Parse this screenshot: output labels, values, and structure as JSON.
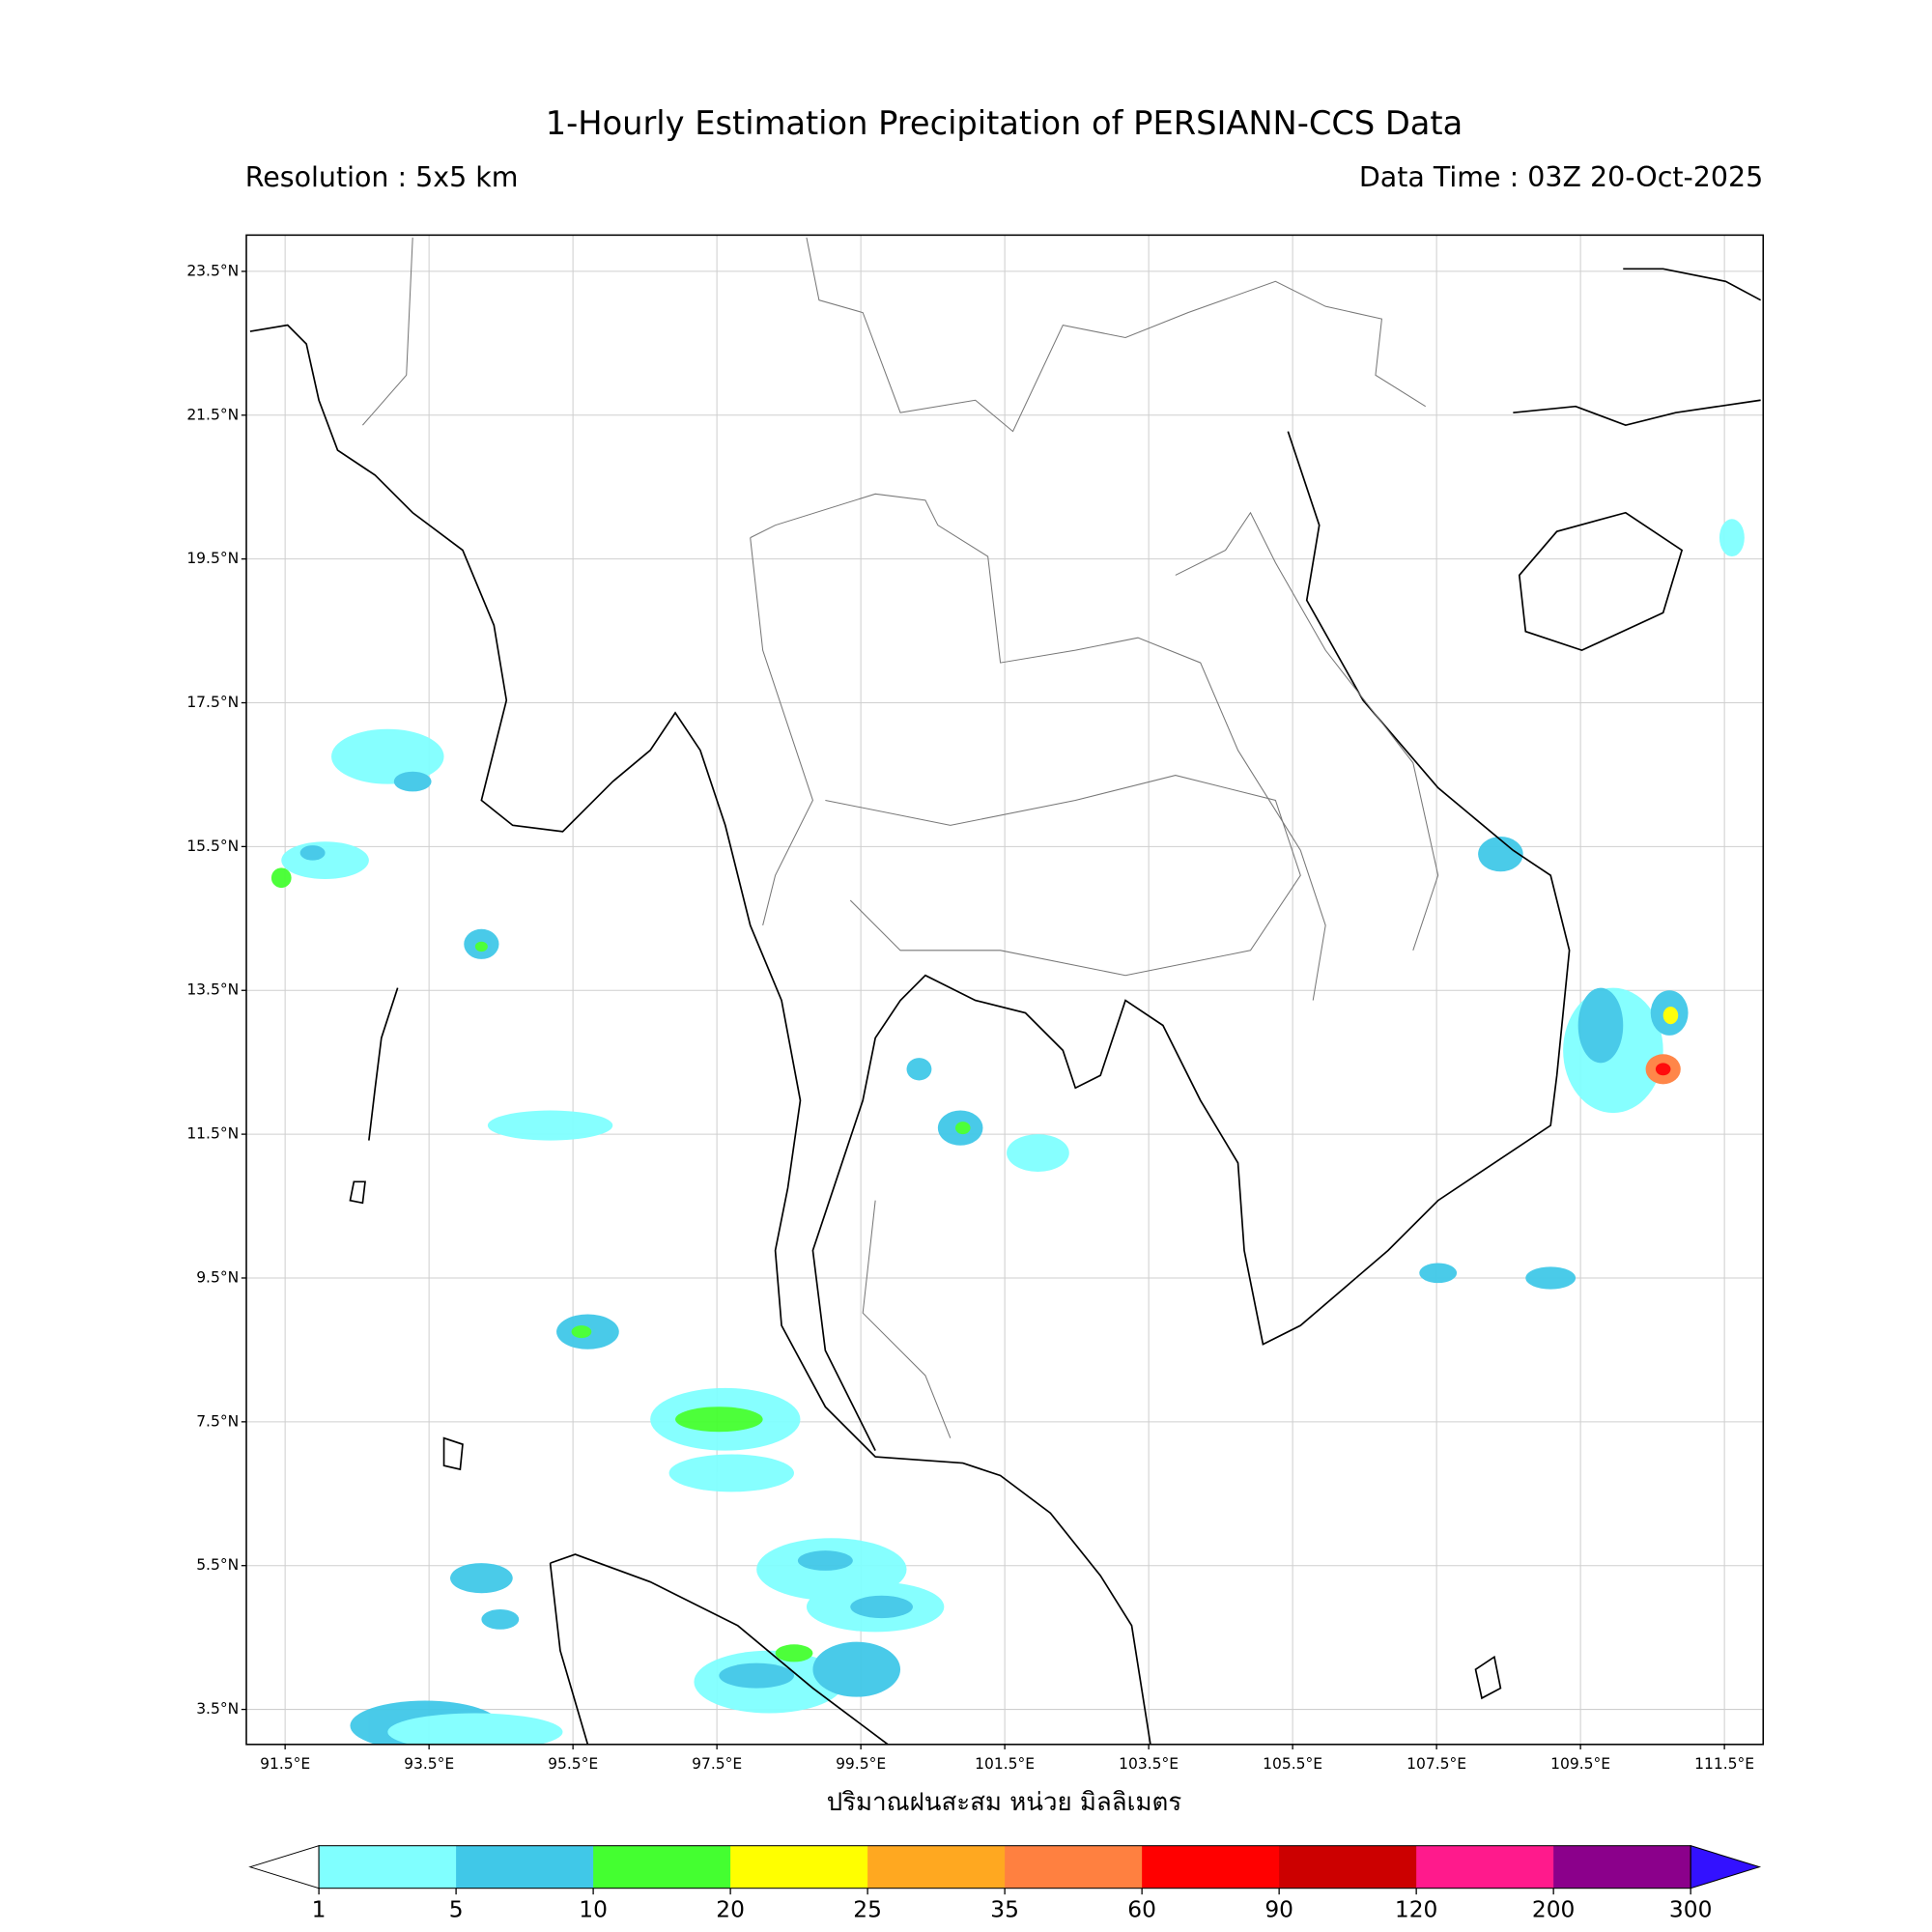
{
  "header": {
    "title": "1-Hourly Estimation Precipitation of PERSIANN-CCS Data",
    "resolution": "Resolution : 5x5 km",
    "data_time": "Data Time : 03Z 20-Oct-2025"
  },
  "map": {
    "lon_ticks": [
      "91.5°E",
      "93.5°E",
      "95.5°E",
      "97.5°E",
      "99.5°E",
      "101.5°E",
      "103.5°E",
      "105.5°E",
      "107.5°E",
      "109.5°E",
      "111.5°E"
    ],
    "lat_ticks": [
      "23.5°N",
      "21.5°N",
      "19.5°N",
      "17.5°N",
      "15.5°N",
      "13.5°N",
      "11.5°N",
      "9.5°N",
      "7.5°N",
      "5.5°N",
      "3.5°N"
    ],
    "xlabel": "ปริมาณฝนสะสม หน่วย มิลลิเมตร",
    "grid": true
  },
  "colorbar": {
    "labels": [
      "1",
      "5",
      "10",
      "20",
      "25",
      "35",
      "60",
      "90",
      "120",
      "200",
      "300"
    ],
    "colors": [
      "#80ffff",
      "#40c8e8",
      "#44ff30",
      "#ffff00",
      "#ffa820",
      "#ff8040",
      "#ff0000",
      "#cc0000",
      "#ff1a8c",
      "#8b008b"
    ],
    "under_color": "#ffffff",
    "over_color": "#3311ff"
  }
}
